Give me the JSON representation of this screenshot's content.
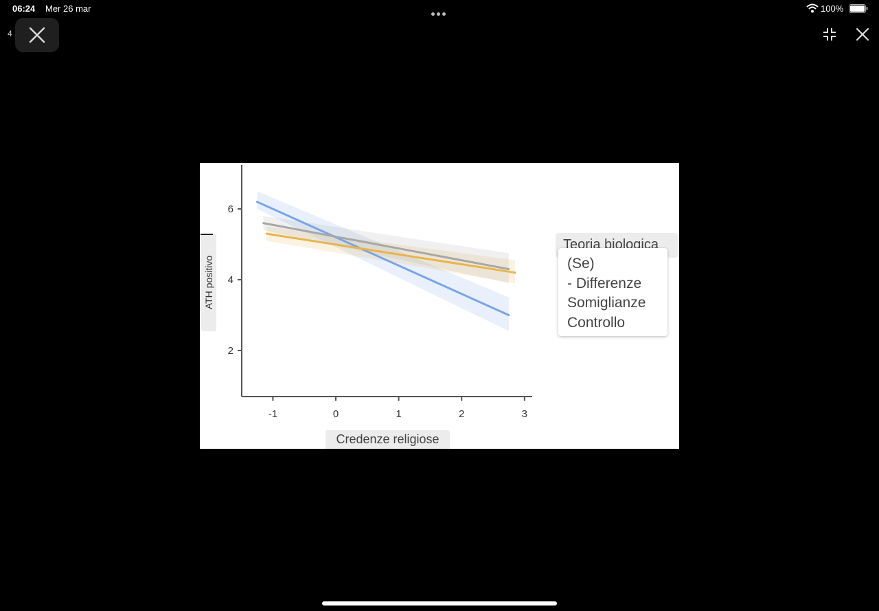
{
  "status_bar": {
    "time": "06:24",
    "date": "Mer 26 mar",
    "battery": "100%"
  },
  "viewer": {
    "page_counter": "4",
    "icons": [
      "close-icon",
      "fullscreen-exit-icon",
      "close-icon",
      "wifi-icon",
      "battery-icon",
      "more-dots-icon"
    ]
  },
  "chart_data": {
    "type": "line",
    "xlabel": "Credenze religiose",
    "ylabel": "ATH positivo",
    "xlim": [
      -1.5,
      3.1
    ],
    "ylim": [
      1.3,
      7.3
    ],
    "xticks": [
      -1,
      0,
      1,
      2,
      3
    ],
    "yticks": [
      2,
      4,
      6
    ],
    "grid": false,
    "legend": {
      "title": "Teoria biologica",
      "items": [
        "(Se)",
        "- Differenze",
        "Somiglianze",
        "Controllo"
      ],
      "placement": "right"
    },
    "series": [
      {
        "color": "#7aa5e6",
        "x": [
          -1.25,
          2.75
        ],
        "y": [
          6.2,
          3.0
        ],
        "ci_lower": [
          6.0,
          2.55
        ],
        "ci_upper": [
          6.5,
          3.5
        ]
      },
      {
        "color": "#e9b44c",
        "x": [
          -1.1,
          2.85
        ],
        "y": [
          5.3,
          4.2
        ],
        "ci_lower": [
          5.1,
          3.9
        ],
        "ci_upper": [
          5.5,
          4.55
        ]
      },
      {
        "color": "#a7a7a7",
        "x": [
          -1.15,
          2.75
        ],
        "y": [
          5.6,
          4.3
        ],
        "ci_lower": [
          5.4,
          3.9
        ],
        "ci_upper": [
          5.8,
          4.75
        ]
      }
    ]
  }
}
